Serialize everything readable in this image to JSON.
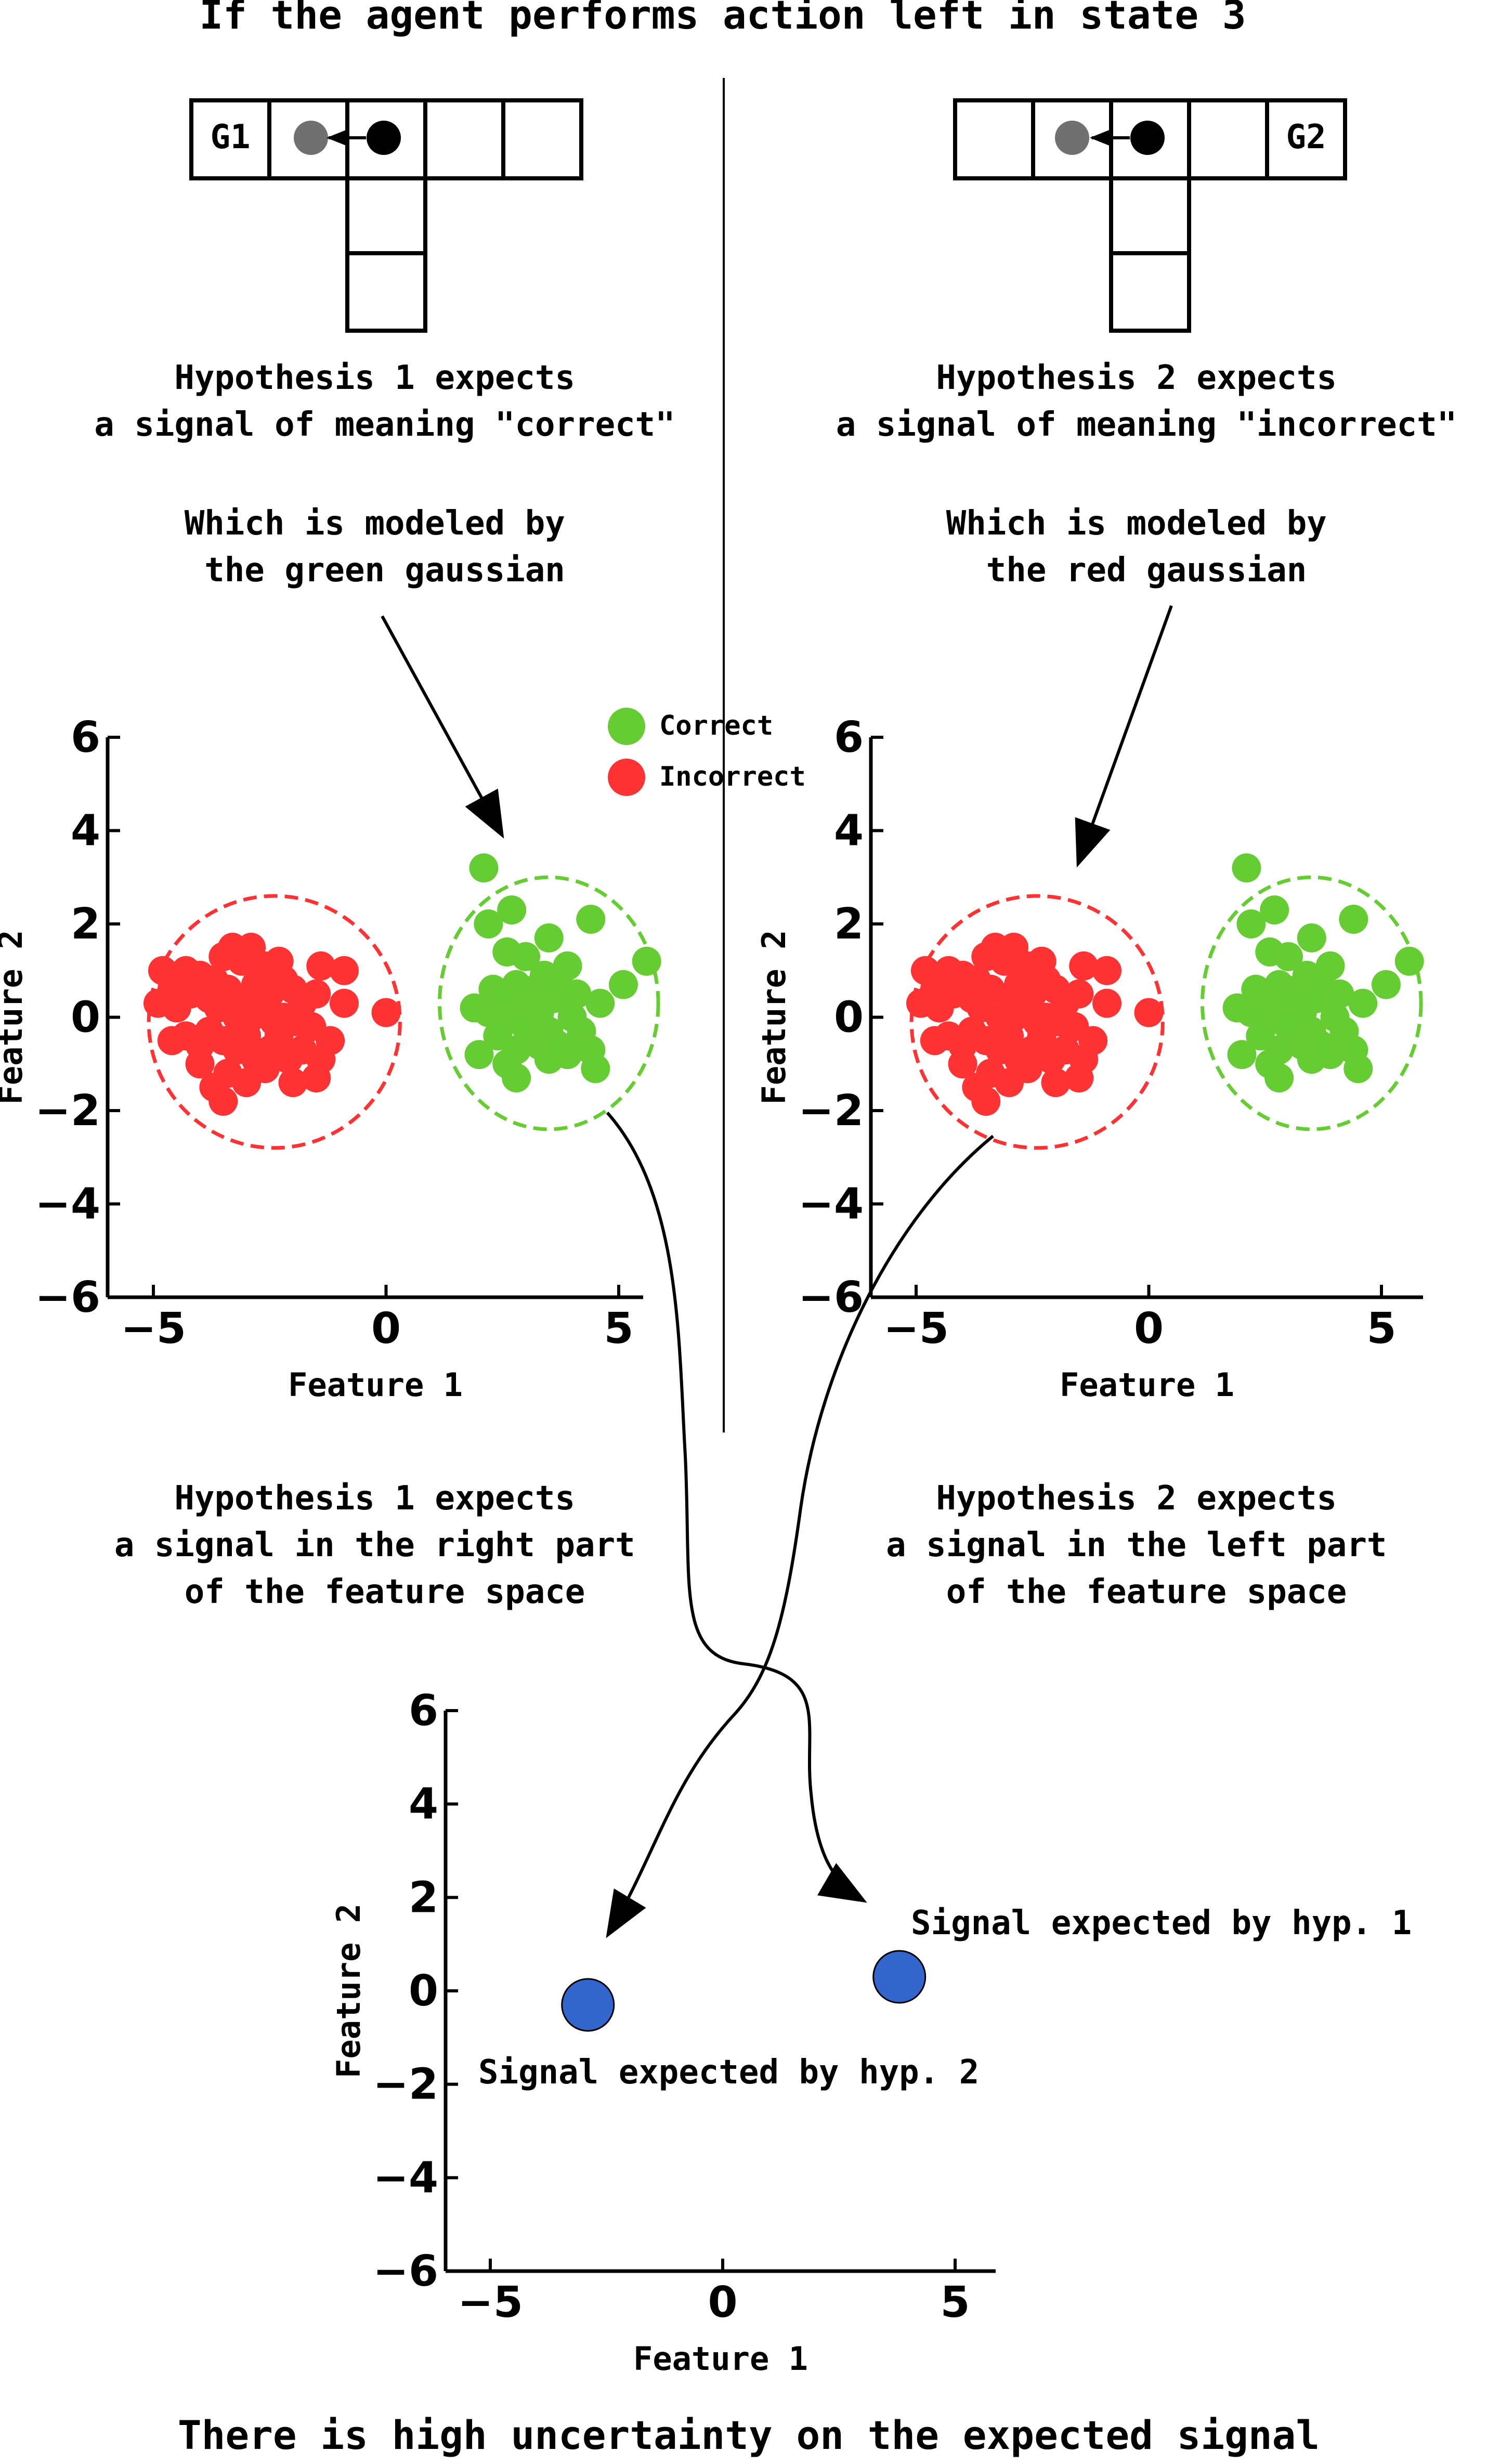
{
  "title_top": "If the agent performs action left in state 3",
  "title_bottom": "There is high uncertainty on the expected signal",
  "left_panel": {
    "goal_label": "G1",
    "hypothesis_lines": [
      "Hypothesis 1 expects",
      "a signal of meaning \"correct\""
    ],
    "model_lines": [
      "Which is modeled by",
      "the green gaussian"
    ],
    "region_lines": [
      "Hypothesis 1 expects",
      "a signal in the right part",
      "of the feature space"
    ]
  },
  "right_panel": {
    "goal_label": "G2",
    "hypothesis_lines": [
      "Hypothesis 2 expects",
      "a signal of meaning \"incorrect\""
    ],
    "model_lines": [
      "Which is modeled by",
      "the red gaussian"
    ],
    "region_lines": [
      "Hypothesis 2 expects",
      "a signal in the left part",
      "of the feature space"
    ]
  },
  "legend": {
    "correct": "Correct",
    "incorrect": "Incorrect"
  },
  "colors": {
    "correct": "#66cc33",
    "incorrect": "#ff3333",
    "signal": "#3366cc",
    "agent": "#000000",
    "agent_ghost": "#707070"
  },
  "chart_data": [
    {
      "type": "scatter",
      "xlabel": "Feature 1",
      "ylabel": "Feature 2",
      "xlim": [
        -6,
        6
      ],
      "ylim": [
        -6,
        6
      ],
      "xticks": [
        -5,
        0,
        5
      ],
      "yticks": [
        -6,
        -4,
        -2,
        0,
        2,
        4,
        6
      ],
      "tick_labels_x": [
        "−5",
        "0",
        "5"
      ],
      "tick_labels_y": [
        "−6",
        "−4",
        "−2",
        "0",
        "2",
        "4",
        "6"
      ],
      "series": [
        {
          "name": "Correct",
          "color": "#66cc33",
          "points": [
            [
              2.1,
              3.2
            ],
            [
              2.2,
              2.0
            ],
            [
              2.7,
              2.3
            ],
            [
              3.5,
              1.7
            ],
            [
              4.4,
              2.1
            ],
            [
              5.6,
              1.2
            ],
            [
              5.1,
              0.7
            ],
            [
              2.6,
              1.4
            ],
            [
              3.0,
              1.3
            ],
            [
              3.9,
              1.1
            ],
            [
              3.4,
              0.9
            ],
            [
              3.7,
              0.8
            ],
            [
              3.2,
              0.6
            ],
            [
              2.8,
              0.7
            ],
            [
              2.3,
              0.6
            ],
            [
              2.5,
              0.4
            ],
            [
              3.1,
              0.3
            ],
            [
              3.6,
              0.4
            ],
            [
              4.1,
              0.5
            ],
            [
              4.6,
              0.3
            ],
            [
              3.3,
              0.1
            ],
            [
              2.7,
              0.0
            ],
            [
              2.2,
              0.1
            ],
            [
              1.9,
              0.2
            ],
            [
              2.9,
              -0.1
            ],
            [
              3.5,
              -0.3
            ],
            [
              4.2,
              -0.3
            ],
            [
              4.4,
              -0.7
            ],
            [
              3.9,
              -0.8
            ],
            [
              3.3,
              -0.6
            ],
            [
              2.8,
              -0.7
            ],
            [
              2.4,
              -0.4
            ],
            [
              2.0,
              -0.8
            ],
            [
              3.5,
              -0.9
            ],
            [
              4.5,
              -1.1
            ],
            [
              2.8,
              -1.3
            ],
            [
              3.0,
              -0.2
            ],
            [
              4.0,
              0.0
            ],
            [
              3.7,
              -0.6
            ],
            [
              2.6,
              -1.0
            ]
          ]
        },
        {
          "name": "Incorrect",
          "color": "#ff3333",
          "points": [
            [
              -4.8,
              1.0
            ],
            [
              -4.6,
              0.6
            ],
            [
              -4.5,
              0.2
            ],
            [
              -4.9,
              0.3
            ],
            [
              -4.3,
              1.0
            ],
            [
              -4.2,
              0.5
            ],
            [
              -4.0,
              0.9
            ],
            [
              -3.8,
              0.4
            ],
            [
              -3.7,
              0.8
            ],
            [
              -3.5,
              1.3
            ],
            [
              -3.3,
              1.5
            ],
            [
              -3.1,
              1.2
            ],
            [
              -2.9,
              1.5
            ],
            [
              -2.6,
              1.1
            ],
            [
              -2.3,
              1.2
            ],
            [
              -2.2,
              0.8
            ],
            [
              -2.0,
              0.6
            ],
            [
              -1.8,
              0.3
            ],
            [
              -1.4,
              1.1
            ],
            [
              -0.9,
              1.0
            ],
            [
              -0.9,
              0.3
            ],
            [
              0.0,
              0.1
            ],
            [
              -3.6,
              0.2
            ],
            [
              -3.4,
              0.6
            ],
            [
              -3.2,
              0.0
            ],
            [
              -3.0,
              0.4
            ],
            [
              -2.8,
              0.7
            ],
            [
              -2.7,
              0.2
            ],
            [
              -2.5,
              0.5
            ],
            [
              -2.4,
              -0.1
            ],
            [
              -2.2,
              0.0
            ],
            [
              -1.9,
              -0.1
            ],
            [
              -1.6,
              -0.2
            ],
            [
              -4.6,
              -0.5
            ],
            [
              -4.3,
              -0.4
            ],
            [
              -4.0,
              -0.6
            ],
            [
              -3.8,
              -0.3
            ],
            [
              -3.5,
              -0.5
            ],
            [
              -3.2,
              -0.7
            ],
            [
              -3.0,
              -0.4
            ],
            [
              -2.8,
              -0.9
            ],
            [
              -2.5,
              -0.7
            ],
            [
              -2.3,
              -0.4
            ],
            [
              -2.1,
              -0.9
            ],
            [
              -1.8,
              -0.7
            ],
            [
              -1.5,
              -1.3
            ],
            [
              -1.4,
              -0.9
            ],
            [
              -3.4,
              -1.2
            ],
            [
              -3.0,
              -1.4
            ],
            [
              -2.6,
              -1.1
            ],
            [
              -3.5,
              -1.8
            ],
            [
              -1.2,
              -0.5
            ],
            [
              -2.0,
              -1.4
            ],
            [
              -3.7,
              -1.5
            ],
            [
              -4.0,
              -1.0
            ],
            [
              -2.9,
              0.0
            ],
            [
              -1.5,
              0.5
            ]
          ]
        }
      ],
      "ellipses": [
        {
          "color": "#ff3333",
          "center": [
            -2.4,
            -0.1
          ],
          "rx": 2.7,
          "ry": 2.7
        },
        {
          "color": "#66cc33",
          "center": [
            3.5,
            0.3
          ],
          "rx": 2.35,
          "ry": 2.7
        }
      ]
    },
    {
      "type": "scatter",
      "xlabel": "Feature 1",
      "ylabel": "Feature 2",
      "xlim": [
        -6,
        6
      ],
      "ylim": [
        -6,
        6
      ],
      "xticks": [
        -5,
        0,
        5
      ],
      "yticks": [
        -6,
        -4,
        -2,
        0,
        2,
        4,
        6
      ],
      "tick_labels_x": [
        "−5",
        "0",
        "5"
      ],
      "tick_labels_y": [
        "−6",
        "−4",
        "−2",
        "0",
        "2",
        "4",
        "6"
      ],
      "note": "Same point clouds and ellipses as the first chart."
    },
    {
      "type": "scatter",
      "xlabel": "Feature 1",
      "ylabel": "Feature 2",
      "xlim": [
        -6,
        6
      ],
      "ylim": [
        -6,
        6
      ],
      "xticks": [
        -5,
        0,
        5
      ],
      "yticks": [
        -6,
        -4,
        -2,
        0,
        2,
        4,
        6
      ],
      "tick_labels_x": [
        "−5",
        "0",
        "5"
      ],
      "tick_labels_y": [
        "−6",
        "−4",
        "−2",
        "0",
        "2",
        "4",
        "6"
      ],
      "series": [
        {
          "name": "",
          "color": "#3366cc",
          "points": [
            [
              3.8,
              0.3
            ],
            [
              -2.9,
              -0.3
            ]
          ]
        }
      ],
      "labels": [
        "Signal expected by hyp. 1",
        "Signal expected by hyp. 2"
      ]
    }
  ]
}
